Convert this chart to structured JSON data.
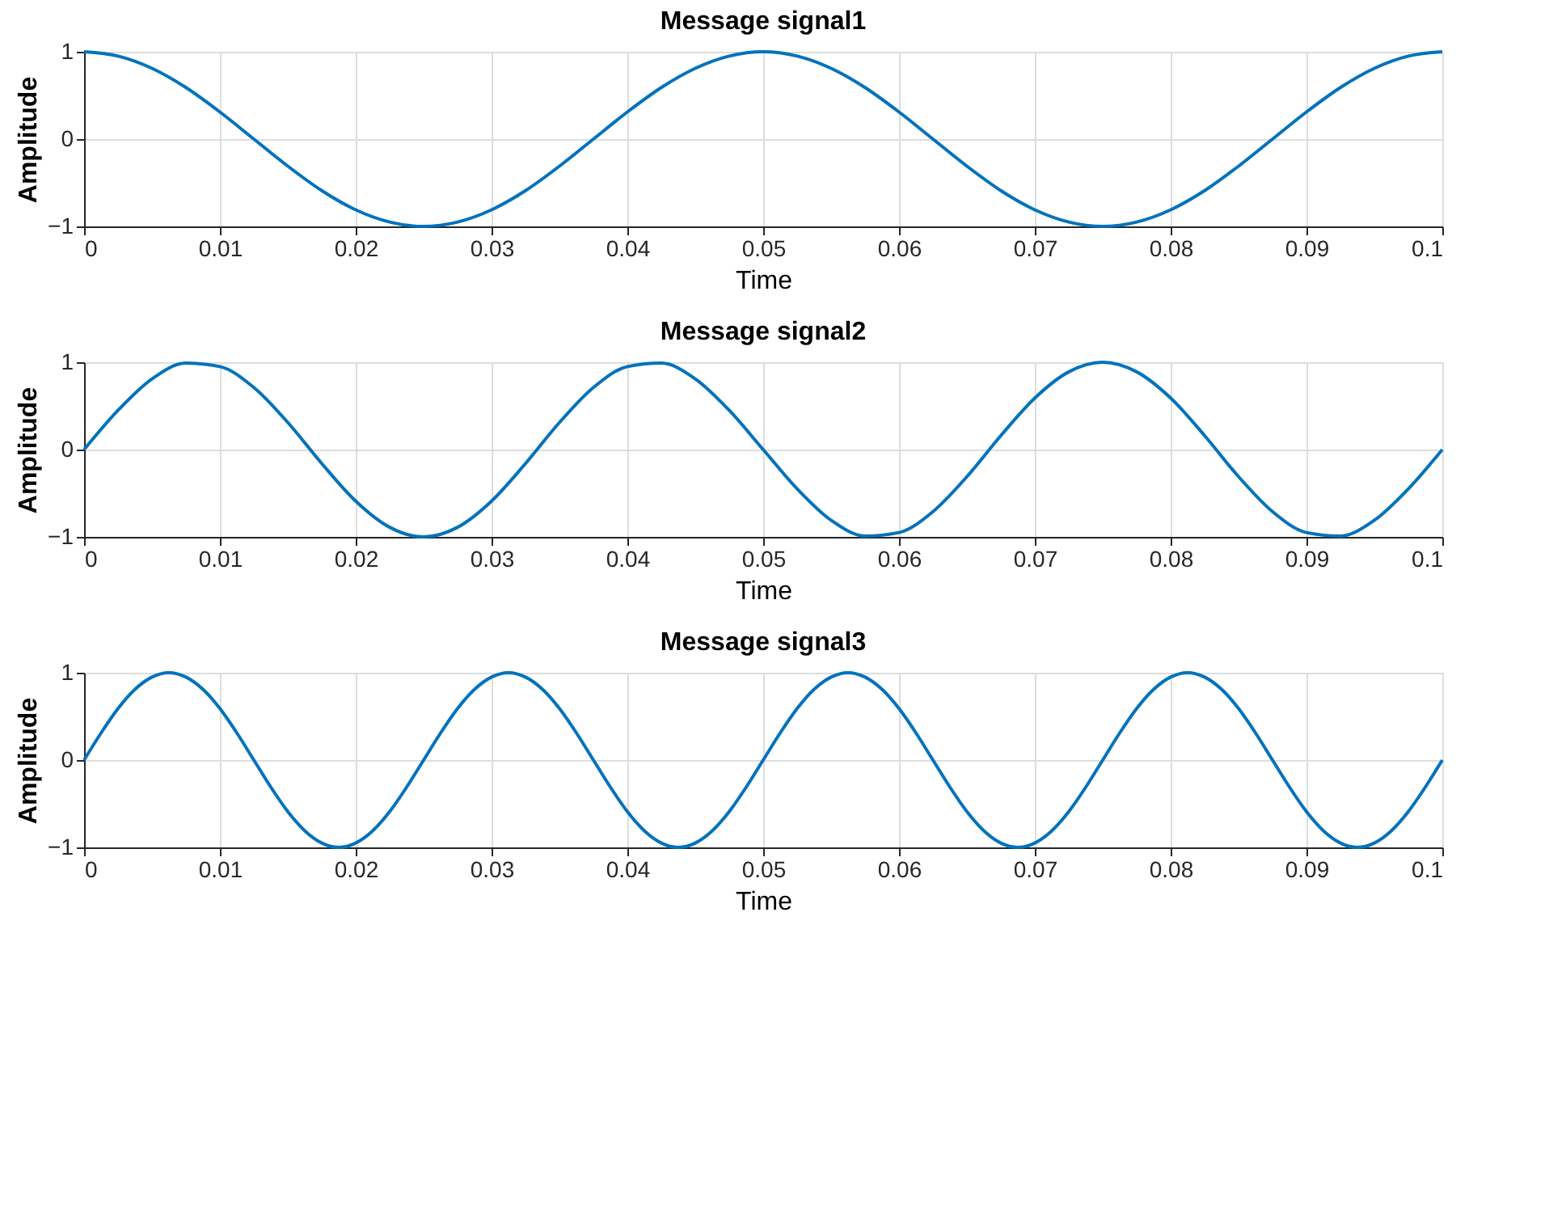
{
  "chart_data": [
    {
      "type": "line",
      "title": "Message signal1",
      "xlabel": "Time",
      "ylabel": "Amplitude",
      "xlim": [
        0,
        0.1
      ],
      "ylim": [
        -1,
        1
      ],
      "xticks": [
        0,
        0.01,
        0.02,
        0.03,
        0.04,
        0.05,
        0.06,
        0.07,
        0.08,
        0.09,
        0.1
      ],
      "yticks": [
        -1,
        0,
        1
      ],
      "grid": true,
      "line_style": "solid",
      "x": [
        0,
        0.0025,
        0.005,
        0.0075,
        0.01,
        0.0125,
        0.015,
        0.0175,
        0.02,
        0.0225,
        0.025,
        0.0275,
        0.03,
        0.0325,
        0.035,
        0.0375,
        0.04,
        0.0425,
        0.045,
        0.0475,
        0.05,
        0.0525,
        0.055,
        0.0575,
        0.06,
        0.0625,
        0.065,
        0.0675,
        0.07,
        0.0725,
        0.075,
        0.0775,
        0.08,
        0.0825,
        0.085,
        0.0875,
        0.09,
        0.0925,
        0.095,
        0.0975,
        0.1
      ],
      "series": [
        {
          "color": "#0072bd",
          "values": [
            1,
            0.95,
            0.81,
            0.59,
            0.31,
            0,
            -0.31,
            -0.59,
            -0.81,
            -0.95,
            -1,
            -0.95,
            -0.81,
            -0.59,
            -0.31,
            0,
            0.31,
            0.59,
            0.81,
            0.95,
            1,
            0.95,
            0.81,
            0.59,
            0.31,
            0,
            -0.31,
            -0.59,
            -0.81,
            -0.95,
            -1,
            -0.95,
            -0.81,
            -0.59,
            -0.31,
            0,
            0.31,
            0.59,
            0.81,
            0.95,
            1
          ]
        }
      ]
    },
    {
      "type": "line",
      "title": "Message signal2",
      "xlabel": "Time",
      "ylabel": "Amplitude",
      "xlim": [
        0,
        0.1
      ],
      "ylim": [
        -1,
        1
      ],
      "xticks": [
        0,
        0.01,
        0.02,
        0.03,
        0.04,
        0.05,
        0.06,
        0.07,
        0.08,
        0.09,
        0.1
      ],
      "yticks": [
        -1,
        0,
        1
      ],
      "grid": true,
      "line_style": "solid",
      "x": [
        0,
        0.0025,
        0.005,
        0.0075,
        0.01,
        0.0125,
        0.015,
        0.0175,
        0.02,
        0.0225,
        0.025,
        0.0275,
        0.03,
        0.0325,
        0.035,
        0.0375,
        0.04,
        0.0425,
        0.045,
        0.0475,
        0.05,
        0.0525,
        0.055,
        0.0575,
        0.06,
        0.0625,
        0.065,
        0.0675,
        0.07,
        0.0725,
        0.075,
        0.0775,
        0.08,
        0.0825,
        0.085,
        0.0875,
        0.09,
        0.0925,
        0.095,
        0.0975,
        0.1
      ],
      "series": [
        {
          "color": "#0072bd",
          "values": [
            0,
            0.45,
            0.81,
            0.99,
            0.95,
            0.71,
            0.31,
            -0.16,
            -0.59,
            -0.89,
            -1,
            -0.89,
            -0.59,
            -0.16,
            0.31,
            0.71,
            0.95,
            0.99,
            0.81,
            0.45,
            0,
            -0.45,
            -0.81,
            -0.99,
            -0.95,
            -0.71,
            -0.31,
            0.16,
            0.59,
            0.89,
            1,
            0.89,
            0.59,
            0.16,
            -0.31,
            -0.71,
            -0.95,
            -0.99,
            -0.81,
            -0.45,
            0
          ]
        }
      ]
    },
    {
      "type": "line",
      "title": "Message signal3",
      "xlabel": "Time",
      "ylabel": "Amplitude",
      "xlim": [
        0,
        0.1
      ],
      "ylim": [
        -1,
        1
      ],
      "xticks": [
        0,
        0.01,
        0.02,
        0.03,
        0.04,
        0.05,
        0.06,
        0.07,
        0.08,
        0.09,
        0.1
      ],
      "yticks": [
        -1,
        0,
        1
      ],
      "grid": true,
      "line_style": "solid",
      "x": [
        0,
        0.00125,
        0.0025,
        0.00375,
        0.005,
        0.00625,
        0.0075,
        0.00875,
        0.01,
        0.01125,
        0.0125,
        0.01375,
        0.015,
        0.01625,
        0.0175,
        0.01875,
        0.02,
        0.02125,
        0.0225,
        0.02375,
        0.025,
        0.02625,
        0.0275,
        0.02875,
        0.03,
        0.03125,
        0.0325,
        0.03375,
        0.035,
        0.03625,
        0.0375,
        0.03875,
        0.04,
        0.04125,
        0.0425,
        0.04375,
        0.045,
        0.04625,
        0.0475,
        0.04875,
        0.05,
        0.05125,
        0.0525,
        0.05375,
        0.055,
        0.05625,
        0.0575,
        0.05875,
        0.06,
        0.06125,
        0.0625,
        0.06375,
        0.065,
        0.06625,
        0.0675,
        0.06875,
        0.07,
        0.07125,
        0.0725,
        0.07375,
        0.075,
        0.07625,
        0.0775,
        0.07875,
        0.08,
        0.08125,
        0.0825,
        0.08375,
        0.085,
        0.08625,
        0.0875,
        0.08875,
        0.09,
        0.09125,
        0.0925,
        0.09375,
        0.095,
        0.09625,
        0.0975,
        0.09875,
        0.1
      ],
      "series": [
        {
          "color": "#0072bd",
          "values": [
            0,
            0.31,
            0.59,
            0.81,
            0.95,
            1,
            0.95,
            0.81,
            0.59,
            0.31,
            0,
            -0.31,
            -0.59,
            -0.81,
            -0.95,
            -1,
            -0.95,
            -0.81,
            -0.59,
            -0.31,
            0,
            0.31,
            0.59,
            0.81,
            0.95,
            1,
            0.95,
            0.81,
            0.59,
            0.31,
            0,
            -0.31,
            -0.59,
            -0.81,
            -0.95,
            -1,
            -0.95,
            -0.81,
            -0.59,
            -0.31,
            0,
            0.31,
            0.59,
            0.81,
            0.95,
            1,
            0.95,
            0.81,
            0.59,
            0.31,
            0,
            -0.31,
            -0.59,
            -0.81,
            -0.95,
            -1,
            -0.95,
            -0.81,
            -0.59,
            -0.31,
            0,
            0.31,
            0.59,
            0.81,
            0.95,
            1,
            0.95,
            0.81,
            0.59,
            0.31,
            0,
            -0.31,
            -0.59,
            -0.81,
            -0.95,
            -1,
            -0.95,
            -0.81,
            -0.59,
            -0.31,
            0
          ]
        }
      ]
    }
  ]
}
